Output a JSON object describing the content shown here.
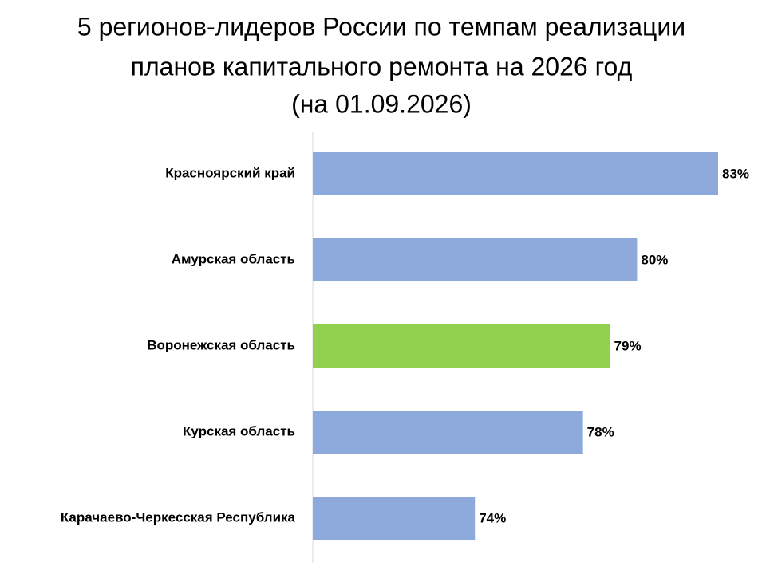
{
  "chart_data": {
    "type": "hbar",
    "title": [
      "5 регионов-лидеров России по темпам реализации",
      "планов капитального ремонта на 2026 год",
      "(на 01.09.2026)"
    ],
    "categories": [
      "Красноярский край",
      "Амурская область",
      "Воронежская область",
      "Курская область",
      "Карачаево-Черкесская Республика"
    ],
    "values": [
      83,
      80,
      79,
      78,
      74
    ],
    "value_labels": [
      "83%",
      "80%",
      "79%",
      "78%",
      "74%"
    ],
    "colors": [
      "#8eaadc",
      "#8eaadc",
      "#92d050",
      "#8eaadc",
      "#8eaadc"
    ],
    "xlim": [
      68,
      83
    ]
  }
}
